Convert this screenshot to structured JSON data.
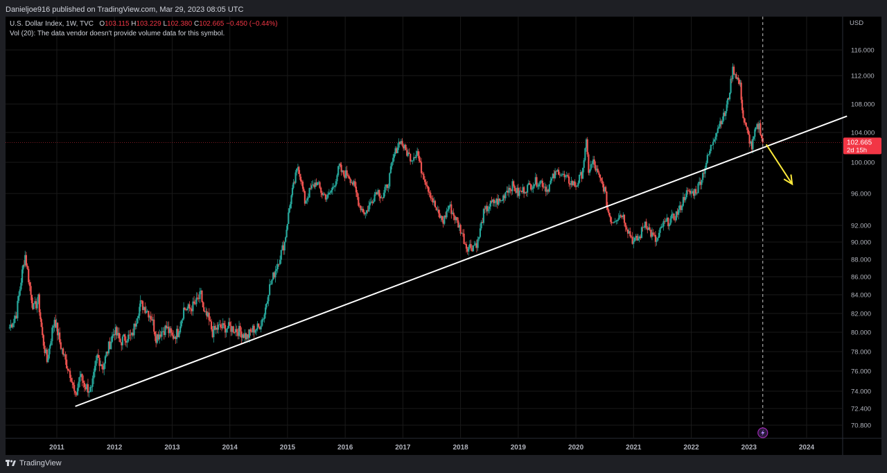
{
  "header": {
    "publisher": "Danieljoe916 published on TradingView.com, Mar 29, 2023 08:05 UTC"
  },
  "legend": {
    "symbol": "U.S. Dollar Index, 1W, TVC",
    "o_label": "O",
    "open": "103.115",
    "h_label": "H",
    "high": "103.229",
    "l_label": "L",
    "low": "102.380",
    "c_label": "C",
    "close": "102.665",
    "change": "−0.450 (−0.44%)",
    "volume_note": "Vol (20): The data vendor doesn't provide volume data for this symbol."
  },
  "footer": {
    "brand": "TradingView"
  },
  "chart_data": {
    "type": "candlestick",
    "symbol": "U.S. Dollar Index, 1W, TVC",
    "currency": "USD",
    "price_axis_ticks": [
      "116.000",
      "112.000",
      "108.000",
      "104.000",
      "100.000",
      "96.000",
      "92.000",
      "90.000",
      "88.000",
      "86.000",
      "84.000",
      "82.000",
      "80.000",
      "78.000",
      "76.000",
      "74.000",
      "72.400",
      "70.800"
    ],
    "time_axis_ticks": [
      "2011",
      "2012",
      "2013",
      "2014",
      "2015",
      "2016",
      "2017",
      "2018",
      "2019",
      "2020",
      "2021",
      "2022",
      "2023",
      "2024"
    ],
    "last_price": "102.665",
    "last_price_countdown": "2d 15h",
    "ylim": [
      70,
      117
    ],
    "xlim": [
      2010.15,
      2024.7
    ],
    "series": [
      {
        "t": 2010.18,
        "c": 80.5
      },
      {
        "t": 2010.3,
        "c": 82.0
      },
      {
        "t": 2010.4,
        "c": 86.5
      },
      {
        "t": 2010.45,
        "c": 88.5
      },
      {
        "t": 2010.55,
        "c": 84.0
      },
      {
        "t": 2010.6,
        "c": 82.5
      },
      {
        "t": 2010.68,
        "c": 83.5
      },
      {
        "t": 2010.75,
        "c": 79.5
      },
      {
        "t": 2010.83,
        "c": 77.0
      },
      {
        "t": 2010.9,
        "c": 79.5
      },
      {
        "t": 2010.96,
        "c": 81.5
      },
      {
        "t": 2011.05,
        "c": 79.0
      },
      {
        "t": 2011.15,
        "c": 77.0
      },
      {
        "t": 2011.25,
        "c": 75.5
      },
      {
        "t": 2011.32,
        "c": 73.3
      },
      {
        "t": 2011.4,
        "c": 75.5
      },
      {
        "t": 2011.5,
        "c": 74.5
      },
      {
        "t": 2011.6,
        "c": 74.0
      },
      {
        "t": 2011.7,
        "c": 77.5
      },
      {
        "t": 2011.8,
        "c": 76.5
      },
      {
        "t": 2011.9,
        "c": 78.5
      },
      {
        "t": 2012.0,
        "c": 80.2
      },
      {
        "t": 2012.1,
        "c": 79.0
      },
      {
        "t": 2012.2,
        "c": 79.5
      },
      {
        "t": 2012.3,
        "c": 79.5
      },
      {
        "t": 2012.4,
        "c": 82.0
      },
      {
        "t": 2012.45,
        "c": 83.0
      },
      {
        "t": 2012.55,
        "c": 82.5
      },
      {
        "t": 2012.65,
        "c": 81.5
      },
      {
        "t": 2012.72,
        "c": 79.5
      },
      {
        "t": 2012.8,
        "c": 80.0
      },
      {
        "t": 2012.9,
        "c": 80.5
      },
      {
        "t": 2013.0,
        "c": 79.5
      },
      {
        "t": 2013.1,
        "c": 80.0
      },
      {
        "t": 2013.2,
        "c": 82.5
      },
      {
        "t": 2013.3,
        "c": 82.5
      },
      {
        "t": 2013.4,
        "c": 83.0
      },
      {
        "t": 2013.5,
        "c": 84.0
      },
      {
        "t": 2013.55,
        "c": 82.0
      },
      {
        "t": 2013.62,
        "c": 81.5
      },
      {
        "t": 2013.7,
        "c": 80.0
      },
      {
        "t": 2013.8,
        "c": 80.5
      },
      {
        "t": 2013.9,
        "c": 80.5
      },
      {
        "t": 2014.0,
        "c": 80.5
      },
      {
        "t": 2014.1,
        "c": 80.3
      },
      {
        "t": 2014.2,
        "c": 80.0
      },
      {
        "t": 2014.3,
        "c": 79.5
      },
      {
        "t": 2014.4,
        "c": 80.3
      },
      {
        "t": 2014.5,
        "c": 80.5
      },
      {
        "t": 2014.6,
        "c": 82.0
      },
      {
        "t": 2014.67,
        "c": 84.5
      },
      {
        "t": 2014.75,
        "c": 86.0
      },
      {
        "t": 2014.85,
        "c": 88.0
      },
      {
        "t": 2014.95,
        "c": 90.0
      },
      {
        "t": 2015.0,
        "c": 92.5
      },
      {
        "t": 2015.05,
        "c": 95.0
      },
      {
        "t": 2015.12,
        "c": 97.5
      },
      {
        "t": 2015.18,
        "c": 99.5
      },
      {
        "t": 2015.23,
        "c": 98.0
      },
      {
        "t": 2015.3,
        "c": 95.0
      },
      {
        "t": 2015.4,
        "c": 96.5
      },
      {
        "t": 2015.5,
        "c": 97.5
      },
      {
        "t": 2015.6,
        "c": 96.0
      },
      {
        "t": 2015.7,
        "c": 95.5
      },
      {
        "t": 2015.8,
        "c": 97.0
      },
      {
        "t": 2015.9,
        "c": 99.5
      },
      {
        "t": 2015.95,
        "c": 98.5
      },
      {
        "t": 2016.05,
        "c": 98.5
      },
      {
        "t": 2016.15,
        "c": 97.0
      },
      {
        "t": 2016.25,
        "c": 94.5
      },
      {
        "t": 2016.35,
        "c": 93.5
      },
      {
        "t": 2016.45,
        "c": 95.0
      },
      {
        "t": 2016.55,
        "c": 96.5
      },
      {
        "t": 2016.65,
        "c": 95.5
      },
      {
        "t": 2016.75,
        "c": 97.5
      },
      {
        "t": 2016.85,
        "c": 101.0
      },
      {
        "t": 2016.95,
        "c": 103.0
      },
      {
        "t": 2017.05,
        "c": 101.5
      },
      {
        "t": 2017.15,
        "c": 100.5
      },
      {
        "t": 2017.25,
        "c": 101.5
      },
      {
        "t": 2017.3,
        "c": 99.5
      },
      {
        "t": 2017.4,
        "c": 97.5
      },
      {
        "t": 2017.5,
        "c": 95.5
      },
      {
        "t": 2017.6,
        "c": 93.5
      },
      {
        "t": 2017.7,
        "c": 92.5
      },
      {
        "t": 2017.8,
        "c": 94.5
      },
      {
        "t": 2017.9,
        "c": 93.0
      },
      {
        "t": 2018.0,
        "c": 91.5
      },
      {
        "t": 2018.1,
        "c": 89.5
      },
      {
        "t": 2018.2,
        "c": 89.5
      },
      {
        "t": 2018.3,
        "c": 90.0
      },
      {
        "t": 2018.4,
        "c": 93.5
      },
      {
        "t": 2018.5,
        "c": 94.5
      },
      {
        "t": 2018.6,
        "c": 95.0
      },
      {
        "t": 2018.7,
        "c": 95.0
      },
      {
        "t": 2018.8,
        "c": 96.5
      },
      {
        "t": 2018.9,
        "c": 97.0
      },
      {
        "t": 2019.0,
        "c": 96.0
      },
      {
        "t": 2019.1,
        "c": 96.5
      },
      {
        "t": 2019.2,
        "c": 97.0
      },
      {
        "t": 2019.3,
        "c": 97.5
      },
      {
        "t": 2019.4,
        "c": 97.5
      },
      {
        "t": 2019.5,
        "c": 96.5
      },
      {
        "t": 2019.6,
        "c": 98.0
      },
      {
        "t": 2019.7,
        "c": 99.0
      },
      {
        "t": 2019.8,
        "c": 98.0
      },
      {
        "t": 2019.9,
        "c": 97.5
      },
      {
        "t": 2020.0,
        "c": 97.0
      },
      {
        "t": 2020.1,
        "c": 98.5
      },
      {
        "t": 2020.18,
        "c": 102.5
      },
      {
        "t": 2020.22,
        "c": 99.0
      },
      {
        "t": 2020.3,
        "c": 100.0
      },
      {
        "t": 2020.4,
        "c": 98.0
      },
      {
        "t": 2020.5,
        "c": 96.5
      },
      {
        "t": 2020.55,
        "c": 94.0
      },
      {
        "t": 2020.62,
        "c": 92.5
      },
      {
        "t": 2020.7,
        "c": 93.0
      },
      {
        "t": 2020.8,
        "c": 93.5
      },
      {
        "t": 2020.9,
        "c": 91.5
      },
      {
        "t": 2021.0,
        "c": 90.0
      },
      {
        "t": 2021.1,
        "c": 90.5
      },
      {
        "t": 2021.2,
        "c": 92.5
      },
      {
        "t": 2021.3,
        "c": 91.0
      },
      {
        "t": 2021.4,
        "c": 90.0
      },
      {
        "t": 2021.5,
        "c": 92.0
      },
      {
        "t": 2021.6,
        "c": 92.5
      },
      {
        "t": 2021.7,
        "c": 93.0
      },
      {
        "t": 2021.8,
        "c": 94.0
      },
      {
        "t": 2021.9,
        "c": 96.0
      },
      {
        "t": 2022.0,
        "c": 96.0
      },
      {
        "t": 2022.1,
        "c": 96.5
      },
      {
        "t": 2022.2,
        "c": 98.5
      },
      {
        "t": 2022.3,
        "c": 101.0
      },
      {
        "t": 2022.4,
        "c": 103.5
      },
      {
        "t": 2022.5,
        "c": 105.5
      },
      {
        "t": 2022.58,
        "c": 106.5
      },
      {
        "t": 2022.65,
        "c": 109.0
      },
      {
        "t": 2022.72,
        "c": 113.0
      },
      {
        "t": 2022.78,
        "c": 112.0
      },
      {
        "t": 2022.85,
        "c": 110.5
      },
      {
        "t": 2022.9,
        "c": 106.0
      },
      {
        "t": 2022.97,
        "c": 104.0
      },
      {
        "t": 2023.05,
        "c": 102.0
      },
      {
        "t": 2023.12,
        "c": 104.5
      },
      {
        "t": 2023.18,
        "c": 105.0
      },
      {
        "t": 2023.24,
        "c": 102.665
      }
    ],
    "trendline": {
      "from": {
        "t": 2011.32,
        "price": 72.6
      },
      "to": {
        "t": 2024.7,
        "price": 106.3
      }
    },
    "projection_arrow": {
      "from": {
        "t": 2023.3,
        "price": 102.4
      },
      "to": {
        "t": 2023.75,
        "price": 97.2
      }
    },
    "last_bar_marker": {
      "t": 2023.24
    },
    "colors": {
      "up": "#26a69a",
      "down": "#ef5350",
      "trendline": "#ffffff",
      "arrow": "#ffeb3b",
      "last_price": "#f23645",
      "grid": "#1a1a1a",
      "axis_text": "#b2b5be"
    }
  }
}
